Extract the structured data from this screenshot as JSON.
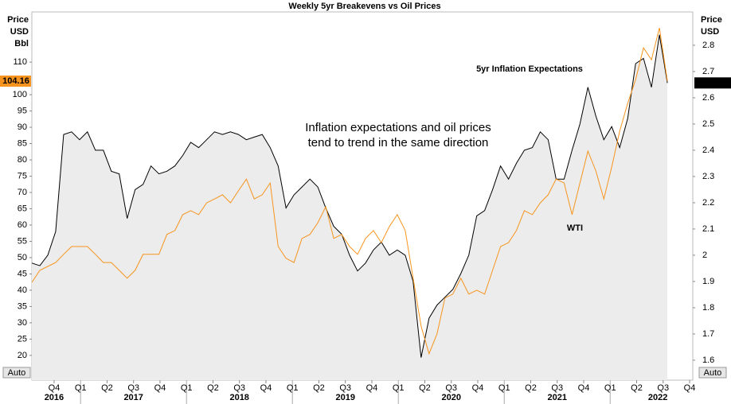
{
  "chart_data": {
    "type": "line",
    "title": "Weekly 5yr Breakevens vs Oil Prices",
    "y_axis_label": [
      "Price",
      "USD",
      "Bbl"
    ],
    "y2_axis_label": [
      "Price",
      "USD"
    ],
    "left_axis_button": "Auto",
    "right_axis_button": "Auto",
    "annotation": [
      "Inflation expectations and oil prices",
      "tend to trend in the same direction"
    ],
    "annotation_color": "#2b2bd6",
    "area_color": "#ececec",
    "grid": false,
    "x": [
      2016.54,
      2016.615,
      2016.69,
      2016.765,
      2016.84,
      2016.915,
      2016.99,
      2017.065,
      2017.14,
      2017.215,
      2017.29,
      2017.365,
      2017.44,
      2017.515,
      2017.59,
      2017.665,
      2017.74,
      2017.815,
      2017.89,
      2017.965,
      2018.04,
      2018.115,
      2018.19,
      2018.265,
      2018.34,
      2018.415,
      2018.49,
      2018.565,
      2018.64,
      2018.715,
      2018.79,
      2018.865,
      2018.94,
      2019.015,
      2019.09,
      2019.165,
      2019.24,
      2019.315,
      2019.39,
      2019.465,
      2019.54,
      2019.615,
      2019.69,
      2019.765,
      2019.84,
      2019.915,
      2019.99,
      2020.065,
      2020.14,
      2020.215,
      2020.29,
      2020.365,
      2020.44,
      2020.515,
      2020.59,
      2020.665,
      2020.74,
      2020.815,
      2020.89,
      2020.965,
      2021.04,
      2021.115,
      2021.19,
      2021.265,
      2021.34,
      2021.415,
      2021.49,
      2021.565,
      2021.64,
      2021.715,
      2021.79,
      2021.865,
      2021.94,
      2022.015,
      2022.09,
      2022.165,
      2022.24,
      2022.315,
      2022.39,
      2022.465,
      2022.54
    ],
    "series": [
      {
        "name": "5yr Inflation Expectations",
        "color": "#000000",
        "axis": "y2",
        "area": true,
        "values": [
          1.97,
          1.96,
          2.0,
          2.09,
          2.46,
          2.47,
          2.44,
          2.47,
          2.4,
          2.4,
          2.32,
          2.31,
          2.14,
          2.25,
          2.27,
          2.34,
          2.31,
          2.32,
          2.34,
          2.38,
          2.43,
          2.41,
          2.44,
          2.47,
          2.46,
          2.47,
          2.46,
          2.44,
          2.45,
          2.46,
          2.41,
          2.34,
          2.18,
          2.23,
          2.26,
          2.29,
          2.26,
          2.18,
          2.11,
          2.08,
          2.0,
          1.94,
          1.97,
          2.02,
          2.05,
          2.0,
          2.02,
          2.0,
          1.9,
          1.61,
          1.76,
          1.81,
          1.84,
          1.87,
          1.93,
          2.0,
          2.15,
          2.17,
          2.25,
          2.34,
          2.29,
          2.35,
          2.4,
          2.41,
          2.47,
          2.44,
          2.29,
          2.29,
          2.4,
          2.5,
          2.64,
          2.53,
          2.44,
          2.49,
          2.41,
          2.52,
          2.73,
          2.75,
          2.64,
          2.84,
          2.6564
        ]
      },
      {
        "name": "WTI",
        "color": "#f7941d",
        "axis": "y",
        "values": [
          42.4,
          46.1,
          47.3,
          48.5,
          51.0,
          53.4,
          53.4,
          53.4,
          51.0,
          48.5,
          48.5,
          46.1,
          43.7,
          46.1,
          51.0,
          51.0,
          51.0,
          57.1,
          58.3,
          63.2,
          64.4,
          63.2,
          66.8,
          68.0,
          69.3,
          66.8,
          70.5,
          74.1,
          68.0,
          69.3,
          72.9,
          53.4,
          49.8,
          48.5,
          55.9,
          57.1,
          60.7,
          65.6,
          55.9,
          57.1,
          53.4,
          51.0,
          55.9,
          58.3,
          54.6,
          59.5,
          63.2,
          58.3,
          43.7,
          29.0,
          20.5,
          26.6,
          37.6,
          38.8,
          43.7,
          38.8,
          40.0,
          38.8,
          46.1,
          53.4,
          54.6,
          58.3,
          64.4,
          63.2,
          66.8,
          69.3,
          74.1,
          72.9,
          63.2,
          72.9,
          82.7,
          76.6,
          68.0,
          77.8,
          88.8,
          97.3,
          104.6,
          114.4,
          110.7,
          120.5,
          104.16
        ]
      }
    ],
    "xlim": [
      2016.54,
      2022.78
    ],
    "xticks": [
      {
        "value": 2016.75,
        "label": "Q4"
      },
      {
        "value": 2017,
        "label": "Q1"
      },
      {
        "value": 2017.25,
        "label": "Q2"
      },
      {
        "value": 2017.5,
        "label": "Q3"
      },
      {
        "value": 2017.75,
        "label": "Q4"
      },
      {
        "value": 2018,
        "label": "Q1"
      },
      {
        "value": 2018.25,
        "label": "Q2"
      },
      {
        "value": 2018.5,
        "label": "Q3"
      },
      {
        "value": 2018.75,
        "label": "Q4"
      },
      {
        "value": 2019,
        "label": "Q1"
      },
      {
        "value": 2019.25,
        "label": "Q2"
      },
      {
        "value": 2019.5,
        "label": "Q3"
      },
      {
        "value": 2019.75,
        "label": "Q4"
      },
      {
        "value": 2020,
        "label": "Q1"
      },
      {
        "value": 2020.25,
        "label": "Q2"
      },
      {
        "value": 2020.5,
        "label": "Q3"
      },
      {
        "value": 2020.75,
        "label": "Q4"
      },
      {
        "value": 2021,
        "label": "Q1"
      },
      {
        "value": 2021.25,
        "label": "Q2"
      },
      {
        "value": 2021.5,
        "label": "Q3"
      },
      {
        "value": 2021.75,
        "label": "Q4"
      },
      {
        "value": 2022,
        "label": "Q1"
      },
      {
        "value": 2022.25,
        "label": "Q2"
      },
      {
        "value": 2022.5,
        "label": "Q3"
      },
      {
        "value": 2022.75,
        "label": "Q4"
      }
    ],
    "xticks_years": [
      {
        "value": 2016.75,
        "label": "2016"
      },
      {
        "value": 2017.5,
        "label": "2017"
      },
      {
        "value": 2018.5,
        "label": "2018"
      },
      {
        "value": 2019.5,
        "label": "2019"
      },
      {
        "value": 2020.5,
        "label": "2020"
      },
      {
        "value": 2021.5,
        "label": "2021"
      },
      {
        "value": 2022.45,
        "label": "2022"
      }
    ],
    "ylim": [
      12.4,
      125.4
    ],
    "yticks": [
      20,
      25,
      30,
      35,
      40,
      45,
      50,
      55,
      60,
      65,
      70,
      75,
      80,
      85,
      90,
      95,
      100,
      110
    ],
    "y2lim": [
      1.524,
      2.927
    ],
    "y2ticks": [
      1.6,
      1.7,
      1.8,
      1.9,
      2,
      2.1,
      2.2,
      2.3,
      2.4,
      2.5,
      2.6,
      2.7,
      2.8
    ]
  }
}
